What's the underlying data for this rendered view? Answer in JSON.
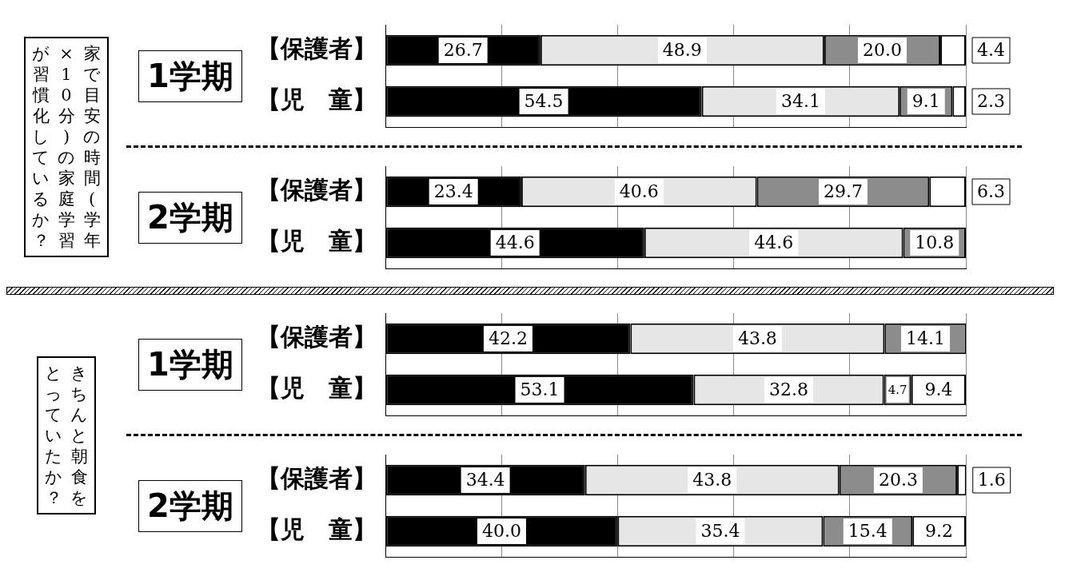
{
  "chart_data": [
    {
      "type": "bar",
      "orientation": "horizontal",
      "stacked": true,
      "title": "1学期",
      "annotations": [
        "家で目安の時間(学年×10分)の家庭学習が習慣化しているか？"
      ],
      "categories": [
        "【保護者】",
        "【児　童】"
      ],
      "xlim": [
        0,
        100
      ],
      "xticks": [
        {
          "value": 0,
          "label": null
        },
        {
          "value": 20,
          "label": null
        },
        {
          "value": 40,
          "label": null
        },
        {
          "value": 60,
          "label": null
        },
        {
          "value": 80,
          "label": null
        },
        {
          "value": 100,
          "label": null
        }
      ],
      "grid": "x",
      "tick_labels": false,
      "series": [
        {
          "color": "#000000",
          "values": [
            26.7,
            54.5
          ],
          "value_labels": [
            "26.7",
            "54.5"
          ]
        },
        {
          "color": "#e6e6e6",
          "values": [
            48.9,
            34.1
          ],
          "value_labels": [
            "48.9",
            "34.1"
          ]
        },
        {
          "color": "#8c8c8c",
          "values": [
            20.0,
            9.1
          ],
          "value_labels": [
            "20.0",
            "9.1"
          ]
        },
        {
          "color": "#ffffff",
          "values": [
            4.4,
            2.3
          ],
          "value_labels": [
            "4.4",
            "2.3"
          ]
        }
      ]
    },
    {
      "type": "bar",
      "orientation": "horizontal",
      "stacked": true,
      "title": "2学期",
      "categories": [
        "【保護者】",
        "【児　童】"
      ],
      "xlim": [
        0,
        100
      ],
      "xticks": [
        {
          "value": 0,
          "label": null
        },
        {
          "value": 20,
          "label": null
        },
        {
          "value": 40,
          "label": null
        },
        {
          "value": 60,
          "label": null
        },
        {
          "value": 80,
          "label": null
        },
        {
          "value": 100,
          "label": null
        }
      ],
      "grid": "x",
      "tick_labels": false,
      "series": [
        {
          "color": "#000000",
          "values": [
            23.4,
            44.6
          ],
          "value_labels": [
            "23.4",
            "44.6"
          ]
        },
        {
          "color": "#e6e6e6",
          "values": [
            40.6,
            44.6
          ],
          "value_labels": [
            "40.6",
            "44.6"
          ]
        },
        {
          "color": "#8c8c8c",
          "values": [
            29.7,
            10.8
          ],
          "value_labels": [
            "29.7",
            "10.8"
          ]
        },
        {
          "color": "#ffffff",
          "values": [
            6.3,
            null
          ],
          "value_labels": [
            "6.3",
            null
          ]
        }
      ]
    },
    {
      "type": "bar",
      "orientation": "horizontal",
      "stacked": true,
      "title": "1学期",
      "annotations": [
        "きちんと朝食をとっていたか？"
      ],
      "categories": [
        "【保護者】",
        "【児　童】"
      ],
      "xlim": [
        0,
        100
      ],
      "xticks": [
        {
          "value": 0,
          "label": null
        },
        {
          "value": 20,
          "label": null
        },
        {
          "value": 40,
          "label": null
        },
        {
          "value": 60,
          "label": null
        },
        {
          "value": 80,
          "label": null
        },
        {
          "value": 100,
          "label": null
        }
      ],
      "grid": "x",
      "tick_labels": false,
      "series": [
        {
          "color": "#000000",
          "values": [
            42.2,
            53.1
          ],
          "value_labels": [
            "42.2",
            "53.1"
          ]
        },
        {
          "color": "#e6e6e6",
          "values": [
            43.8,
            32.8
          ],
          "value_labels": [
            "43.8",
            "32.8"
          ]
        },
        {
          "color": "#8c8c8c",
          "values": [
            14.1,
            4.7
          ],
          "value_labels": [
            "14.1",
            "4.7"
          ]
        },
        {
          "color": "#ffffff",
          "values": [
            null,
            9.4
          ],
          "value_labels": [
            null,
            "9.4"
          ]
        }
      ]
    },
    {
      "type": "bar",
      "orientation": "horizontal",
      "stacked": true,
      "title": "2学期",
      "categories": [
        "【保護者】",
        "【児　童】"
      ],
      "xlim": [
        0,
        100
      ],
      "xticks": [
        {
          "value": 0,
          "label": null
        },
        {
          "value": 20,
          "label": null
        },
        {
          "value": 40,
          "label": null
        },
        {
          "value": 60,
          "label": null
        },
        {
          "value": 80,
          "label": null
        },
        {
          "value": 100,
          "label": null
        }
      ],
      "grid": "x",
      "tick_labels": false,
      "series": [
        {
          "color": "#000000",
          "values": [
            34.4,
            40.0
          ],
          "value_labels": [
            "34.4",
            "40.0"
          ]
        },
        {
          "color": "#e6e6e6",
          "values": [
            43.8,
            35.4
          ],
          "value_labels": [
            "43.8",
            "35.4"
          ]
        },
        {
          "color": "#8c8c8c",
          "values": [
            20.3,
            15.4
          ],
          "value_labels": [
            "20.3",
            "15.4"
          ]
        },
        {
          "color": "#ffffff",
          "values": [
            1.6,
            9.2
          ],
          "value_labels": [
            "1.6",
            "9.2"
          ]
        }
      ]
    }
  ]
}
